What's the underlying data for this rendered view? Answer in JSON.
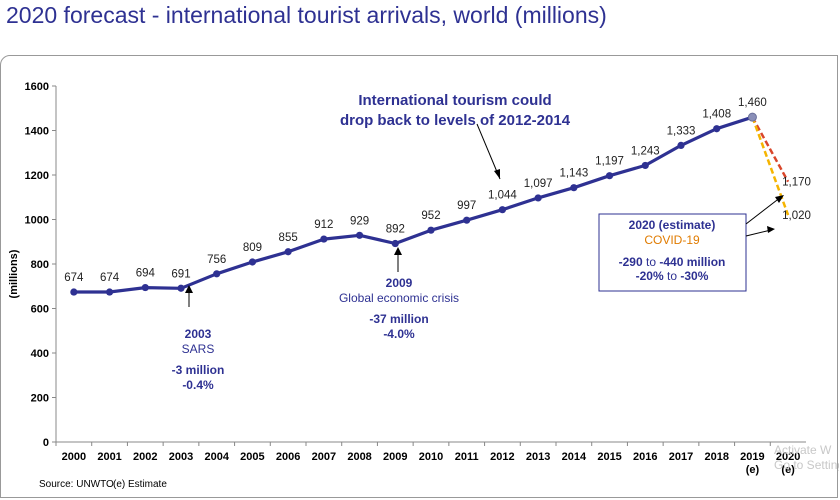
{
  "title": "2020 forecast - international tourist arrivals, world (millions)",
  "chart_data": {
    "type": "line",
    "title": "2020 forecast - international tourist arrivals, world (millions)",
    "xlabel": "",
    "ylabel": "(millions)",
    "ylim": [
      0,
      1600
    ],
    "yticks": [
      0,
      200,
      400,
      600,
      800,
      1000,
      1200,
      1400,
      1600
    ],
    "categories": [
      "2000",
      "2001",
      "2002",
      "2003",
      "2004",
      "2005",
      "2006",
      "2007",
      "2008",
      "2009",
      "2010",
      "2011",
      "2012",
      "2013",
      "2014",
      "2015",
      "2016",
      "2017",
      "2018",
      "2019",
      "2020"
    ],
    "category_notes": {
      "2019": "(e)",
      "2020": "(e)"
    },
    "series": [
      {
        "name": "International tourist arrivals",
        "x": [
          "2000",
          "2001",
          "2002",
          "2003",
          "2004",
          "2005",
          "2006",
          "2007",
          "2008",
          "2009",
          "2010",
          "2011",
          "2012",
          "2013",
          "2014",
          "2015",
          "2016",
          "2017",
          "2018",
          "2019"
        ],
        "values": [
          674,
          674,
          694,
          691,
          756,
          809,
          855,
          912,
          929,
          892,
          952,
          997,
          1044,
          1097,
          1143,
          1197,
          1243,
          1333,
          1408,
          1460
        ],
        "labels": [
          "674",
          "674",
          "694",
          "691",
          "756",
          "809",
          "855",
          "912",
          "929",
          "892",
          "952",
          "997",
          "1,044",
          "1,097",
          "1,143",
          "1,197",
          "1,243",
          "1,333",
          "1,408",
          "1,460"
        ],
        "color": "#2e3192"
      },
      {
        "name": "2020 estimate (-20%)",
        "x": [
          "2019",
          "2020"
        ],
        "values": [
          1460,
          1170
        ],
        "labels": [
          "",
          "1,170"
        ],
        "color": "#d9462a",
        "dashed": true
      },
      {
        "name": "2020 estimate (-30%)",
        "x": [
          "2019",
          "2020"
        ],
        "values": [
          1460,
          1020
        ],
        "labels": [
          "",
          "1,020"
        ],
        "color": "#f5b400",
        "dashed": true
      }
    ],
    "annotations": {
      "tourism_drop": [
        "International tourism could",
        "drop back to levels of 2012-2014"
      ],
      "sars": {
        "year": "2003",
        "label": "SARS",
        "change": "-3 million",
        "pct": "-0.4%"
      },
      "crisis": {
        "year": "2009",
        "label": "Global economic crisis",
        "change": "-37 million",
        "pct": "-4.0%"
      },
      "forecast_box": {
        "title": "2020 (estimate)",
        "subtitle": "COVID-19",
        "line1": {
          "pre": "-290",
          "mid": " to ",
          "post": "-440 million"
        },
        "line2": {
          "pre": "-20%",
          "mid": " to ",
          "post": "-30%"
        }
      }
    }
  },
  "footer": {
    "source": "Source: UNWTO",
    "note": "(e) Estimate"
  },
  "watermark": {
    "line1": "Activate W",
    "line2": "Go to Setting"
  },
  "colors": {
    "series": "#2e3192",
    "annotation": "#2e3192",
    "covid": "#e07b00",
    "frame": "#999999"
  }
}
